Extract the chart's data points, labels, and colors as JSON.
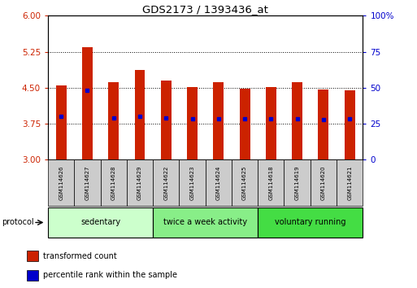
{
  "title": "GDS2173 / 1393436_at",
  "samples": [
    "GSM114626",
    "GSM114627",
    "GSM114628",
    "GSM114629",
    "GSM114622",
    "GSM114623",
    "GSM114624",
    "GSM114625",
    "GSM114618",
    "GSM114619",
    "GSM114620",
    "GSM114621"
  ],
  "bar_tops": [
    4.55,
    5.35,
    4.62,
    4.88,
    4.65,
    4.52,
    4.62,
    4.48,
    4.52,
    4.62,
    4.47,
    4.45
  ],
  "bar_bottom": 3.0,
  "blue_dot_values": [
    3.9,
    4.45,
    3.87,
    3.9,
    3.88,
    3.85,
    3.86,
    3.85,
    3.85,
    3.86,
    3.84,
    3.85
  ],
  "ylim": [
    3.0,
    6.0
  ],
  "yticks_left": [
    3,
    3.75,
    4.5,
    5.25,
    6
  ],
  "yticks_right": [
    0,
    25,
    50,
    75,
    100
  ],
  "ylabel_left_color": "#cc2200",
  "ylabel_right_color": "#0000cc",
  "bar_color": "#cc2200",
  "blue_dot_color": "#0000cc",
  "groups": [
    {
      "label": "sedentary",
      "indices": [
        0,
        1,
        2,
        3
      ],
      "color": "#ccffcc"
    },
    {
      "label": "twice a week activity",
      "indices": [
        4,
        5,
        6,
        7
      ],
      "color": "#88ee88"
    },
    {
      "label": "voluntary running",
      "indices": [
        8,
        9,
        10,
        11
      ],
      "color": "#44dd44"
    }
  ],
  "protocol_label": "protocol",
  "legend": [
    {
      "label": "transformed count",
      "color": "#cc2200"
    },
    {
      "label": "percentile rank within the sample",
      "color": "#0000cc"
    }
  ],
  "bg_color": "#ffffff",
  "tick_label_box_color": "#cccccc",
  "bar_width": 0.4
}
